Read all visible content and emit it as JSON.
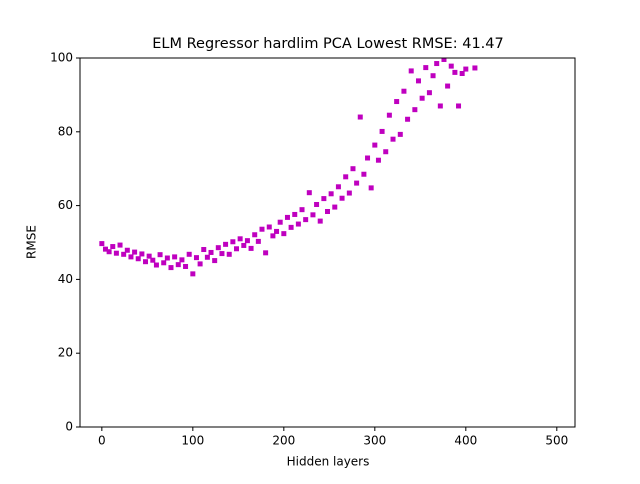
{
  "chart_data": {
    "type": "scatter",
    "title": "ELM Regressor hardlim PCA Lowest RMSE: 41.47",
    "x_label": "Hidden layers",
    "y_label": "RMSE",
    "color": "#bf00bf",
    "x": [
      0,
      4,
      8,
      12,
      16,
      20,
      24,
      28,
      32,
      36,
      40,
      44,
      48,
      52,
      56,
      60,
      64,
      68,
      72,
      76,
      80,
      84,
      88,
      92,
      96,
      100,
      104,
      108,
      112,
      116,
      120,
      124,
      128,
      132,
      136,
      140,
      144,
      148,
      152,
      156,
      160,
      164,
      168,
      172,
      176,
      180,
      184,
      188,
      192,
      196,
      200,
      204,
      208,
      212,
      216,
      220,
      224,
      228,
      232,
      236,
      240,
      244,
      248,
      252,
      256,
      260,
      264,
      268,
      272,
      276,
      280,
      284,
      288,
      292,
      296,
      300,
      304,
      308,
      312,
      316,
      320,
      324,
      328,
      332,
      336,
      340,
      344,
      348,
      352,
      356,
      360,
      364,
      368,
      372,
      376,
      380,
      384,
      388,
      392,
      396,
      400,
      410
    ],
    "values": [
      49.7,
      48.2,
      47.5,
      48.9,
      47.1,
      49.3,
      46.8,
      47.9,
      46.1,
      47.4,
      45.6,
      46.9,
      44.8,
      46.3,
      45.2,
      43.9,
      46.7,
      44.5,
      45.8,
      43.2,
      46.1,
      44.0,
      45.3,
      43.5,
      46.8,
      41.5,
      45.9,
      44.2,
      48.1,
      46.0,
      47.3,
      45.1,
      48.6,
      47.0,
      49.5,
      46.8,
      50.2,
      48.3,
      51.0,
      49.2,
      50.5,
      48.4,
      52.1,
      50.3,
      53.6,
      47.2,
      54.2,
      51.8,
      53.0,
      55.5,
      52.4,
      56.8,
      54.1,
      57.6,
      55.0,
      58.9,
      56.2,
      63.5,
      57.5,
      60.3,
      55.8,
      61.9,
      58.4,
      63.2,
      59.6,
      65.1,
      62.0,
      67.8,
      63.4,
      70.0,
      66.1,
      84.0,
      68.5,
      72.9,
      64.8,
      76.4,
      72.3,
      80.1,
      74.6,
      84.5,
      78.0,
      88.2,
      79.3,
      91.0,
      83.4,
      96.5,
      86.0,
      93.8,
      89.1,
      97.4,
      90.6,
      95.2,
      98.5,
      87.0,
      99.6,
      92.4,
      97.8,
      96.1,
      87.0,
      95.8,
      97.0,
      97.3
    ],
    "xlim": [
      -24,
      520
    ],
    "ylim": [
      0,
      100
    ],
    "xticks": [
      0,
      100,
      200,
      300,
      400,
      500
    ],
    "yticks": [
      0,
      20,
      40,
      60,
      80,
      100
    ]
  }
}
